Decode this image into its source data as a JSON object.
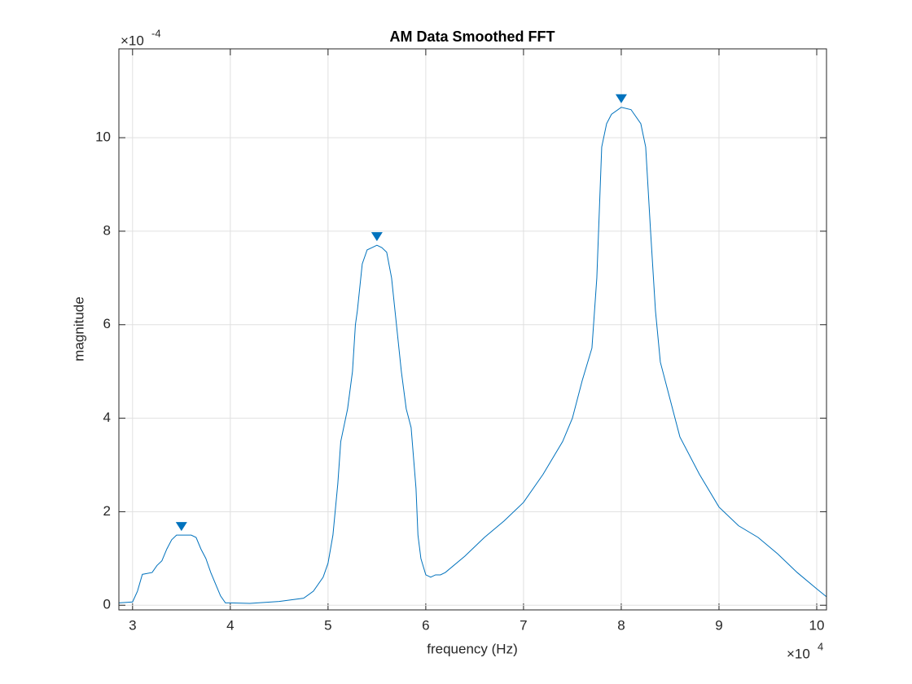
{
  "chart_data": {
    "type": "line",
    "title": "AM Data Smoothed FFT",
    "x_label": "frequency (Hz)",
    "y_label": "magnitude",
    "x_multiplier": "×10",
    "x_exponent": "4",
    "y_multiplier": "×10",
    "y_exponent": "-4",
    "xlim": [
      2.86,
      10.1
    ],
    "xticks": [
      3,
      4,
      5,
      6,
      7,
      8,
      9,
      10
    ],
    "ylim": [
      -0.1,
      11.9
    ],
    "yticks": [
      0,
      2,
      4,
      6,
      8,
      10
    ],
    "grid": true,
    "color": "#0072bd",
    "x": [
      2.86,
      3.0,
      3.05,
      3.1,
      3.2,
      3.25,
      3.3,
      3.35,
      3.4,
      3.45,
      3.5,
      3.6,
      3.65,
      3.7,
      3.75,
      3.8,
      3.85,
      3.9,
      3.95,
      4.0,
      4.2,
      4.5,
      4.75,
      4.85,
      4.95,
      5.0,
      5.05,
      5.1,
      5.13,
      5.2,
      5.25,
      5.28,
      5.3,
      5.35,
      5.4,
      5.45,
      5.5,
      5.55,
      5.6,
      5.65,
      5.7,
      5.75,
      5.8,
      5.85,
      5.9,
      5.92,
      5.95,
      6.0,
      6.05,
      6.1,
      6.15,
      6.2,
      6.4,
      6.6,
      6.8,
      7.0,
      7.2,
      7.4,
      7.5,
      7.6,
      7.7,
      7.75,
      7.8,
      7.85,
      7.9,
      8.0,
      8.1,
      8.2,
      8.25,
      8.3,
      8.35,
      8.4,
      8.5,
      8.6,
      8.8,
      9.0,
      9.2,
      9.4,
      9.6,
      9.8,
      10.0,
      10.1
    ],
    "values": [
      0.05,
      0.07,
      0.3,
      0.66,
      0.7,
      0.85,
      0.95,
      1.2,
      1.4,
      1.5,
      1.5,
      1.5,
      1.45,
      1.2,
      1.0,
      0.7,
      0.45,
      0.2,
      0.05,
      0.05,
      0.04,
      0.08,
      0.15,
      0.3,
      0.6,
      0.9,
      1.5,
      2.6,
      3.5,
      4.2,
      5.0,
      6.0,
      6.3,
      7.3,
      7.6,
      7.65,
      7.7,
      7.65,
      7.55,
      7.0,
      6.0,
      5.0,
      4.2,
      3.8,
      2.5,
      1.5,
      1.0,
      0.65,
      0.6,
      0.65,
      0.65,
      0.7,
      1.05,
      1.45,
      1.8,
      2.2,
      2.8,
      3.5,
      4.0,
      4.8,
      5.5,
      7.0,
      9.8,
      10.3,
      10.5,
      10.65,
      10.6,
      10.3,
      9.8,
      8.0,
      6.3,
      5.2,
      4.4,
      3.6,
      2.8,
      2.1,
      1.7,
      1.45,
      1.1,
      0.7,
      0.35,
      0.18
    ],
    "peaks": {
      "x": [
        3.5,
        5.5,
        8.0
      ],
      "values": [
        1.5,
        7.7,
        10.65
      ]
    }
  }
}
